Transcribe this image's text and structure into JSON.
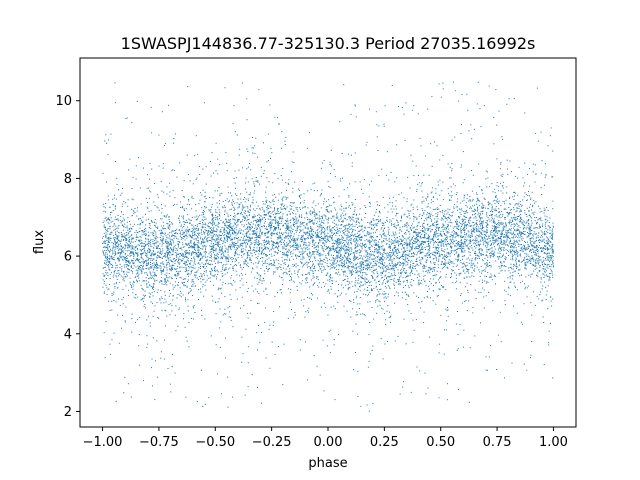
{
  "chart_data": {
    "type": "scatter",
    "title": "1SWASPJ144836.77-325130.3 Period 27035.16992s",
    "xlabel": "phase",
    "ylabel": "flux",
    "xlim": [
      -1.1,
      1.1
    ],
    "ylim": [
      1.6,
      11.1
    ],
    "xticks": [
      -1.0,
      -0.75,
      -0.5,
      -0.25,
      0.0,
      0.25,
      0.5,
      0.75,
      1.0
    ],
    "xtick_labels": [
      "−1.00",
      "−0.75",
      "−0.50",
      "−0.25",
      "0.00",
      "0.25",
      "0.50",
      "0.75",
      "1.00"
    ],
    "yticks": [
      2,
      4,
      6,
      8,
      10
    ],
    "ytick_labels": [
      "2",
      "4",
      "6",
      "8",
      "10"
    ],
    "grid": false,
    "legend": "none",
    "marker_color": "#1f77b4",
    "series": [
      {
        "x_range": [
          -1.0,
          1.0
        ],
        "y_range": [
          2.0,
          10.5
        ],
        "phase_profile": {
          "x": [
            -1.0,
            -0.75,
            -0.5,
            -0.25,
            0.0,
            0.25,
            0.5,
            0.75,
            1.0
          ],
          "y_center": [
            6.2,
            6.0,
            6.4,
            6.6,
            6.3,
            6.0,
            6.4,
            6.6,
            6.2
          ]
        }
      }
    ]
  }
}
